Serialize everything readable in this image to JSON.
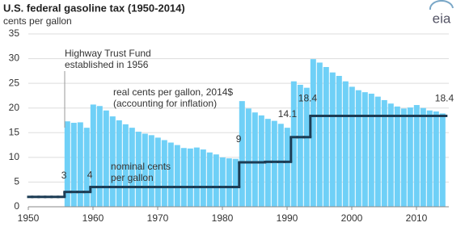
{
  "chart_data": {
    "type": "bar-step",
    "title": "U.S. federal gasoline tax (1950-2014)",
    "subtitle": "cents per gallon",
    "logo": "eia",
    "x": [
      1950,
      1951,
      1952,
      1953,
      1954,
      1955,
      1956,
      1957,
      1958,
      1959,
      1960,
      1961,
      1962,
      1963,
      1964,
      1965,
      1966,
      1967,
      1968,
      1969,
      1970,
      1971,
      1972,
      1973,
      1974,
      1975,
      1976,
      1977,
      1978,
      1979,
      1980,
      1981,
      1982,
      1983,
      1984,
      1985,
      1986,
      1987,
      1988,
      1989,
      1990,
      1991,
      1992,
      1993,
      1994,
      1995,
      1996,
      1997,
      1998,
      1999,
      2000,
      2001,
      2002,
      2003,
      2004,
      2005,
      2006,
      2007,
      2008,
      2009,
      2010,
      2011,
      2012,
      2013,
      2014
    ],
    "series": [
      {
        "name": "real cents per gallon, 2014$",
        "color": "#6fd0f7",
        "values": [
          null,
          null,
          null,
          null,
          null,
          null,
          17.3,
          17.0,
          17.1,
          16.0,
          20.7,
          20.4,
          19.5,
          18.3,
          17.5,
          16.7,
          16.0,
          15.2,
          14.8,
          14.5,
          14.0,
          13.5,
          13.0,
          12.5,
          11.9,
          11.8,
          12.0,
          11.6,
          11.0,
          10.6,
          10.0,
          9.8,
          9.7,
          21.4,
          19.9,
          19.1,
          18.5,
          17.8,
          17.4,
          16.8,
          16.0,
          25.4,
          24.7,
          24.1,
          29.9,
          29.2,
          28.3,
          27.2,
          26.5,
          25.4,
          24.3,
          23.6,
          23.2,
          22.9,
          22.3,
          21.6,
          20.9,
          20.3,
          19.9,
          20.1,
          20.6,
          20.0,
          19.5,
          19.3,
          18.9
        ]
      },
      {
        "name": "nominal cents",
        "color": "#1d3d55",
        "values": [
          2,
          2,
          2,
          2,
          2,
          2,
          3,
          3,
          3,
          3,
          4,
          4,
          4,
          4,
          4,
          4,
          4,
          4,
          4,
          4,
          4,
          4,
          4,
          4,
          4,
          4,
          4,
          4,
          4,
          4,
          4,
          4,
          4,
          9,
          9,
          9,
          9,
          9.1,
          9.1,
          9.1,
          9.1,
          14.1,
          14.1,
          14.1,
          18.4,
          18.4,
          18.4,
          18.4,
          18.4,
          18.4,
          18.4,
          18.4,
          18.4,
          18.4,
          18.4,
          18.4,
          18.4,
          18.4,
          18.4,
          18.4,
          18.4,
          18.4,
          18.4,
          18.4,
          18.4
        ]
      }
    ],
    "annotations": [
      "Highway Trust Fund",
      "established in 1956",
      "(accounting for inflation)",
      "per gallon"
    ],
    "xlim": [
      1950,
      2015
    ],
    "xticks": [
      1950,
      1960,
      1970,
      1980,
      1990,
      2000,
      2010
    ],
    "ylim": [
      0,
      35
    ],
    "yticks": [
      0,
      5,
      10,
      15,
      20,
      25,
      30,
      35
    ],
    "grid": true
  }
}
